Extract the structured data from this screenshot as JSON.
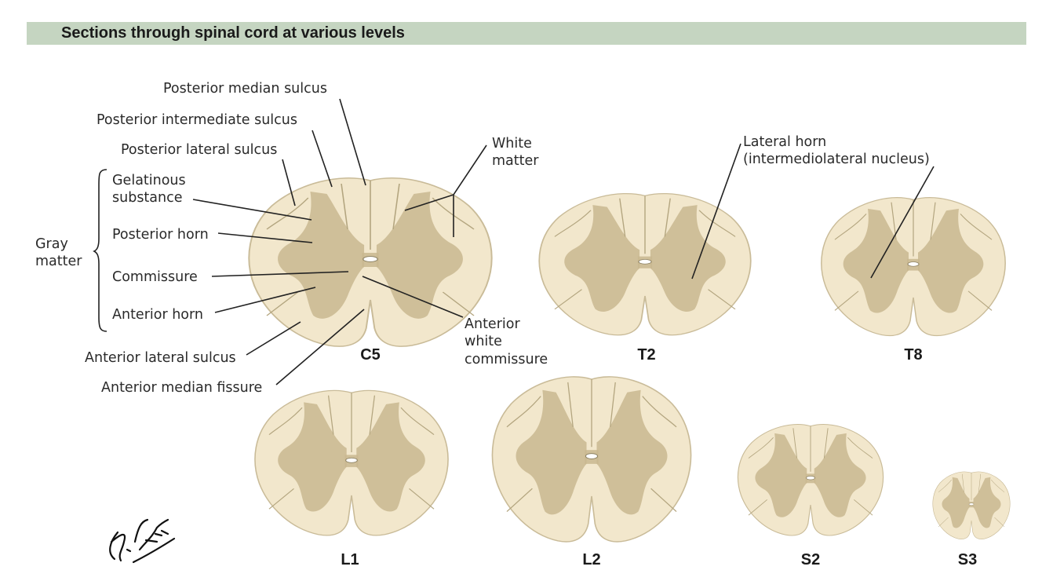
{
  "header": {
    "title": "Sections through spinal cord at various levels"
  },
  "labels": {
    "posterior_median_sulcus": "Posterior median sulcus",
    "posterior_intermediate_sulcus": "Posterior intermediate sulcus",
    "posterior_lateral_sulcus": "Posterior lateral sulcus",
    "gelatinous_substance_1": "Gelatinous",
    "gelatinous_substance_2": "substance",
    "posterior_horn": "Posterior horn",
    "commissure": "Commissure",
    "anterior_horn": "Anterior horn",
    "gray_matter_1": "Gray",
    "gray_matter_2": "matter",
    "white_matter_1": "White",
    "white_matter_2": "matter",
    "anterior_lateral_sulcus": "Anterior lateral sulcus",
    "anterior_median_fissure": "Anterior median fissure",
    "anterior_white_commissure_1": "Anterior",
    "anterior_white_commissure_2": "white",
    "anterior_white_commissure_3": "commissure",
    "lateral_horn_1": "Lateral horn",
    "lateral_horn_2": "(intermediolateral nucleus)"
  },
  "levels": [
    "C5",
    "T2",
    "T8",
    "L1",
    "L2",
    "S2",
    "S3"
  ],
  "colors": {
    "header_bg": "#c5d5c1",
    "white_matter": "#f2e7cc",
    "gray_matter": "#c9b78f"
  }
}
